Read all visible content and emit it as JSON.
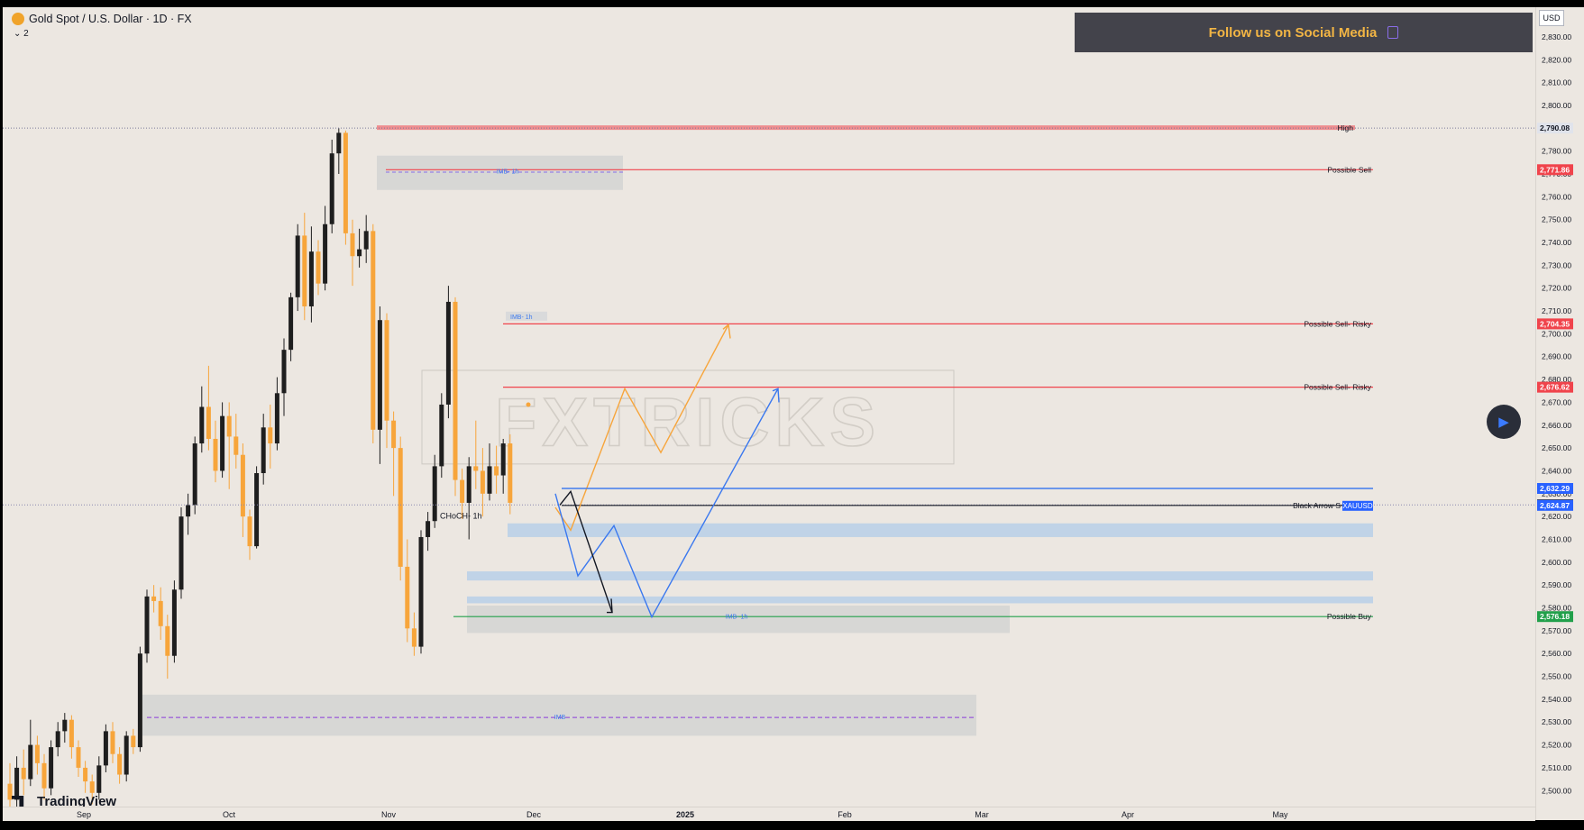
{
  "header": {
    "title": "Gold Spot / U.S. Dollar · 1D · FX",
    "legend_count": "2"
  },
  "banner": {
    "text": "Follow us on Social Media"
  },
  "currency": "USD",
  "branding": {
    "tradingview": "TradingView"
  },
  "colors": {
    "background": "#ece7e1",
    "bull": "#1e1e1e",
    "bear": "#f7a53b",
    "red_level": "#f0444c",
    "green_level": "#22a04b",
    "blue_path": "#3a78ef",
    "orange_path": "#f7a53b",
    "imb_zone": "#d3d4d2",
    "blue_zone": "#b9cfe8"
  },
  "chart_data": {
    "type": "candlestick",
    "symbol": "XAUUSD",
    "timeframe": "1D",
    "ylim": [
      2493,
      2843
    ],
    "y_ticks": [
      2500,
      2510,
      2520,
      2530,
      2540,
      2550,
      2560,
      2570,
      2580,
      2590,
      2600,
      2610,
      2620,
      2630,
      2640,
      2650,
      2660,
      2670,
      2680,
      2690,
      2700,
      2710,
      2720,
      2730,
      2740,
      2750,
      2760,
      2770,
      2780,
      2790,
      2800,
      2810,
      2820,
      2830
    ],
    "x_ticks": [
      "Sep",
      "Oct",
      "Nov",
      "Dec",
      "2025",
      "Feb",
      "Mar",
      "Apr",
      "May"
    ],
    "candles": [
      [
        2503,
        2496,
        2512,
        2493
      ],
      [
        2496,
        2510,
        2515,
        2492
      ],
      [
        2510,
        2505,
        2518,
        2498
      ],
      [
        2505,
        2520,
        2531,
        2502
      ],
      [
        2520,
        2512,
        2524,
        2507
      ],
      [
        2512,
        2501,
        2516,
        2496
      ],
      [
        2501,
        2519,
        2522,
        2498
      ],
      [
        2519,
        2526,
        2530,
        2515
      ],
      [
        2526,
        2531,
        2534,
        2521
      ],
      [
        2531,
        2519,
        2533,
        2514
      ],
      [
        2519,
        2510,
        2522,
        2506
      ],
      [
        2510,
        2504,
        2513,
        2499
      ],
      [
        2504,
        2499,
        2507,
        2494
      ],
      [
        2499,
        2511,
        2515,
        2496
      ],
      [
        2511,
        2526,
        2529,
        2508
      ],
      [
        2526,
        2516,
        2530,
        2512
      ],
      [
        2516,
        2507,
        2519,
        2503
      ],
      [
        2507,
        2524,
        2526,
        2504
      ],
      [
        2524,
        2519,
        2527,
        2516
      ],
      [
        2519,
        2560,
        2563,
        2517
      ],
      [
        2560,
        2585,
        2588,
        2556
      ],
      [
        2585,
        2583,
        2590,
        2578
      ],
      [
        2583,
        2572,
        2589,
        2566
      ],
      [
        2572,
        2559,
        2577,
        2549
      ],
      [
        2559,
        2588,
        2592,
        2556
      ],
      [
        2588,
        2620,
        2624,
        2584
      ],
      [
        2620,
        2625,
        2630,
        2612
      ],
      [
        2625,
        2652,
        2655,
        2621
      ],
      [
        2652,
        2668,
        2677,
        2648
      ],
      [
        2668,
        2654,
        2686,
        2649
      ],
      [
        2654,
        2640,
        2662,
        2635
      ],
      [
        2640,
        2664,
        2670,
        2637
      ],
      [
        2664,
        2655,
        2670,
        2632
      ],
      [
        2655,
        2647,
        2665,
        2641
      ],
      [
        2647,
        2620,
        2652,
        2611
      ],
      [
        2620,
        2607,
        2623,
        2601
      ],
      [
        2607,
        2639,
        2642,
        2606
      ],
      [
        2639,
        2659,
        2665,
        2634
      ],
      [
        2659,
        2652,
        2669,
        2641
      ],
      [
        2652,
        2674,
        2681,
        2649
      ],
      [
        2674,
        2693,
        2698,
        2664
      ],
      [
        2693,
        2716,
        2718,
        2688
      ],
      [
        2716,
        2743,
        2748,
        2710
      ],
      [
        2743,
        2712,
        2753,
        2706
      ],
      [
        2712,
        2736,
        2747,
        2705
      ],
      [
        2736,
        2722,
        2741,
        2717
      ],
      [
        2722,
        2748,
        2756,
        2719
      ],
      [
        2748,
        2779,
        2785,
        2744
      ],
      [
        2779,
        2788,
        2790,
        2770
      ],
      [
        2788,
        2744,
        2789,
        2739
      ],
      [
        2744,
        2734,
        2750,
        2721
      ],
      [
        2734,
        2737,
        2746,
        2729
      ],
      [
        2737,
        2745,
        2752,
        2731
      ],
      [
        2745,
        2658,
        2748,
        2652
      ],
      [
        2658,
        2706,
        2712,
        2643
      ],
      [
        2706,
        2662,
        2709,
        2650
      ],
      [
        2662,
        2650,
        2666,
        2629
      ],
      [
        2650,
        2598,
        2655,
        2592
      ],
      [
        2598,
        2571,
        2610,
        2565
      ],
      [
        2571,
        2563,
        2578,
        2559
      ],
      [
        2563,
        2611,
        2614,
        2560
      ],
      [
        2611,
        2618,
        2622,
        2605
      ],
      [
        2618,
        2642,
        2647,
        2615
      ],
      [
        2642,
        2669,
        2674,
        2637
      ],
      [
        2669,
        2714,
        2721,
        2663
      ],
      [
        2714,
        2636,
        2716,
        2629
      ],
      [
        2636,
        2626,
        2641,
        2619
      ],
      [
        2626,
        2642,
        2646,
        2610
      ],
      [
        2642,
        2640,
        2662,
        2632
      ],
      [
        2640,
        2630,
        2650,
        2620
      ],
      [
        2630,
        2642,
        2652,
        2627
      ],
      [
        2642,
        2638,
        2651,
        2630
      ],
      [
        2638,
        2652,
        2654,
        2630
      ],
      [
        2652,
        2626,
        2656,
        2621
      ]
    ],
    "levels": [
      {
        "label": "High",
        "price": 2790.08,
        "color": "#131722",
        "style": "dotted"
      },
      {
        "label": "Possible Sell",
        "price": 2771.86,
        "color": "#f0444c",
        "style": "solid"
      },
      {
        "label": "Possible Sell- Risky",
        "price": 2704.35,
        "color": "#f0444c",
        "style": "solid"
      },
      {
        "label": "Possible Sell- Risky",
        "price": 2676.62,
        "color": "#f0444c",
        "style": "solid"
      },
      {
        "label": "",
        "price": 2632.29,
        "color": "#3a78ef",
        "style": "solid"
      },
      {
        "label": "",
        "price": 2625.11,
        "color": "#131722",
        "style": "solid"
      },
      {
        "label": "Black Arrow S",
        "price": 2624.87,
        "color": "#131722",
        "style": "solid",
        "tag": "XAUUSD"
      },
      {
        "label": "Possible Buy",
        "price": 2576.18,
        "color": "#22a04b",
        "style": "solid"
      }
    ],
    "zone_labels": [
      "IMB- 1h",
      "IMB- 1h",
      "IMB- 1h",
      "IMB"
    ],
    "choch_label": "CHoCH- 1h",
    "watermark": "FXTRICKS",
    "projections": {
      "orange": [
        [
          2624,
          2614
        ],
        [
          2676,
          2648
        ],
        [
          2704
        ]
      ],
      "blue": [
        [
          2630,
          2594
        ],
        [
          2616,
          2576
        ],
        [
          2676
        ]
      ],
      "black": [
        [
          2631,
          2578
        ]
      ]
    }
  }
}
